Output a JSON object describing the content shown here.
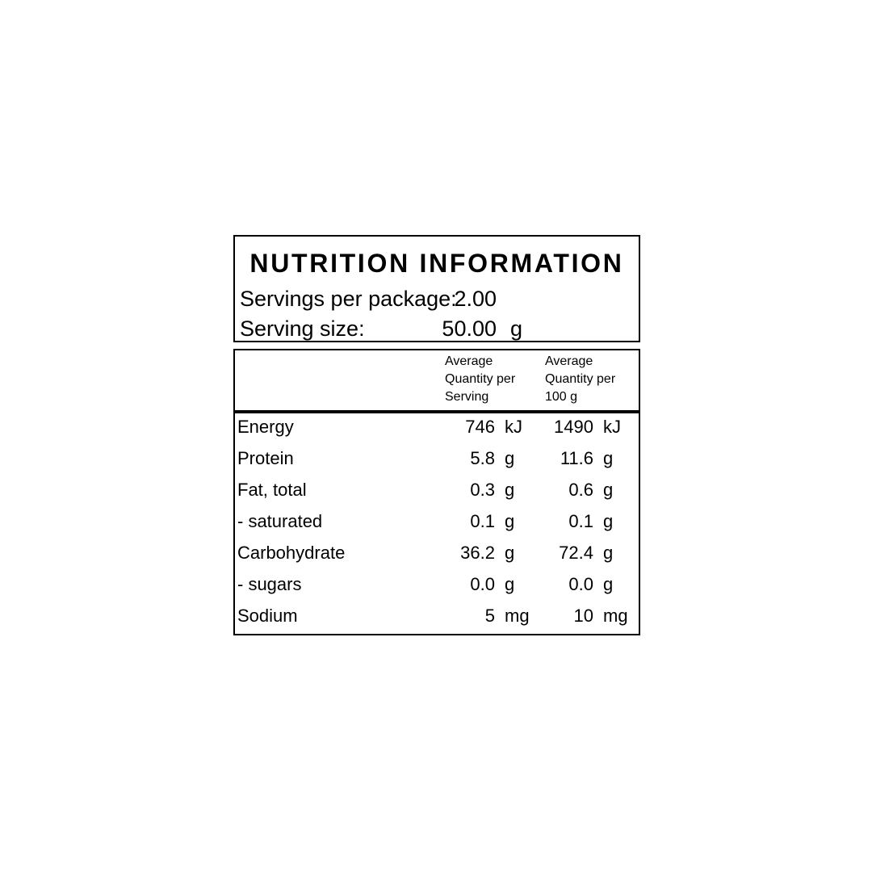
{
  "colors": {
    "background": "#ffffff",
    "text": "#000000",
    "border": "#000000"
  },
  "label": {
    "title": "NUTRITION INFORMATION",
    "servings_per_package": {
      "label": "Servings per package:",
      "value": "2.00"
    },
    "serving_size": {
      "label": "Serving size:",
      "value": "50.00",
      "unit": "g"
    },
    "columns": {
      "per_serving": [
        "Average",
        "Quantity per",
        "Serving"
      ],
      "per_100g": [
        "Average",
        "Quantity per",
        "100 g"
      ]
    },
    "rows": [
      {
        "name": "Energy",
        "per_serving": "746",
        "per_serving_unit": "kJ",
        "per_100g": "1490",
        "per_100g_unit": "kJ"
      },
      {
        "name": "Protein",
        "per_serving": "5.8",
        "per_serving_unit": "g",
        "per_100g": "11.6",
        "per_100g_unit": "g"
      },
      {
        "name": "Fat, total",
        "per_serving": "0.3",
        "per_serving_unit": "g",
        "per_100g": "0.6",
        "per_100g_unit": "g"
      },
      {
        "name": "- saturated",
        "per_serving": "0.1",
        "per_serving_unit": "g",
        "per_100g": "0.1",
        "per_100g_unit": "g"
      },
      {
        "name": "Carbohydrate",
        "per_serving": "36.2",
        "per_serving_unit": "g",
        "per_100g": "72.4",
        "per_100g_unit": "g"
      },
      {
        "name": "- sugars",
        "per_serving": "0.0",
        "per_serving_unit": "g",
        "per_100g": "0.0",
        "per_100g_unit": "g"
      },
      {
        "name": "Sodium",
        "per_serving": "5",
        "per_serving_unit": "mg",
        "per_100g": "10",
        "per_100g_unit": "mg"
      }
    ]
  }
}
